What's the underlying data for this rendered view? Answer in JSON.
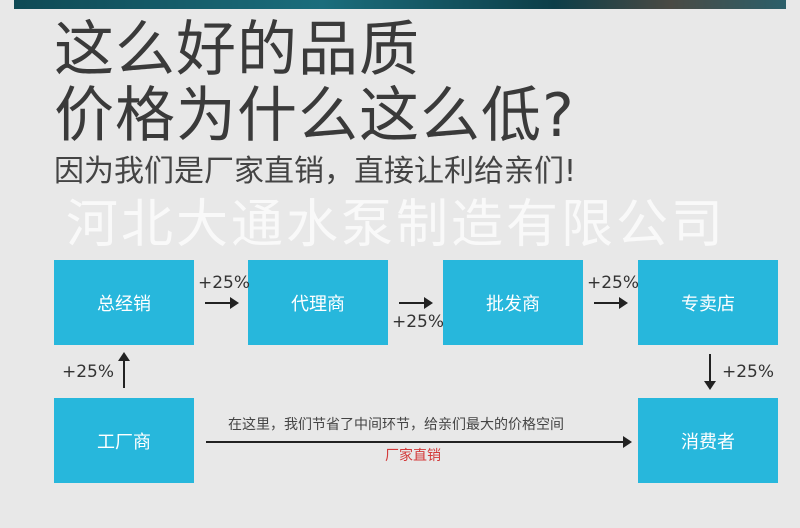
{
  "headline": {
    "line1": "这么好的品质",
    "line2": "价格为什么这么低?"
  },
  "subheadline": "因为我们是厂家直销，直接让利给亲们!",
  "watermark": "河北大通水泵制造有限公司",
  "colors": {
    "box": "#27b7dc",
    "background": "#e8e8e8",
    "highlight_text": "#d33a3a"
  },
  "flow": {
    "nodes": [
      "总经销",
      "代理商",
      "批发商",
      "专卖店",
      "工厂商",
      "消费者"
    ],
    "markups": [
      "+25%",
      "+25%",
      "+25%",
      "+25%",
      "+25%"
    ],
    "direct_note": "在这里，我们节省了中间环节，给亲们最大的价格空间",
    "direct_label": "厂家直销"
  }
}
